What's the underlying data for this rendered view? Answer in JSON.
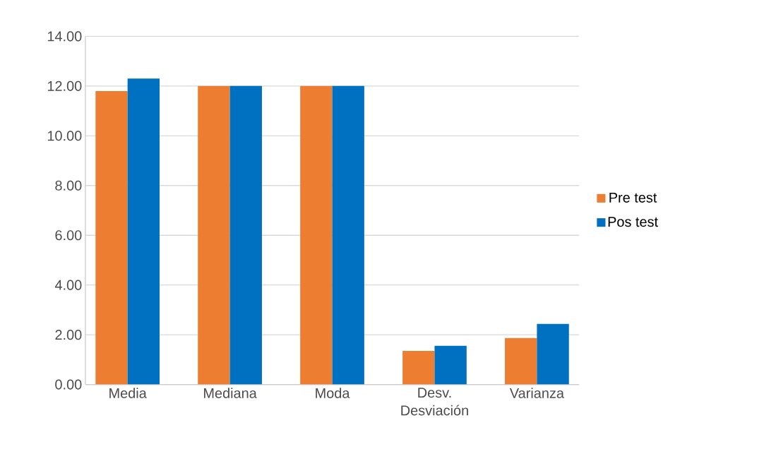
{
  "chart_data": {
    "type": "bar",
    "categories": [
      "Media",
      "Mediana",
      "Moda",
      "Desv. Desviación",
      "Varianza"
    ],
    "series": [
      {
        "name": "Pre test",
        "color": "#ed7d31",
        "values": [
          11.8,
          12,
          12,
          1.35,
          1.87
        ]
      },
      {
        "name": "Pos test",
        "color": "#0070c0",
        "values": [
          12.3,
          12,
          12,
          1.56,
          2.44
        ]
      }
    ],
    "ylim": [
      0,
      14
    ],
    "yticks": [
      {
        "value": 0,
        "label": "0.00"
      },
      {
        "value": 2,
        "label": "2.00"
      },
      {
        "value": 4,
        "label": "4.00"
      },
      {
        "value": 6,
        "label": "6.00"
      },
      {
        "value": 8,
        "label": "8.00"
      },
      {
        "value": 10,
        "label": "10.00"
      },
      {
        "value": 12,
        "label": "12.00"
      },
      {
        "value": 14,
        "label": "14.00"
      }
    ],
    "grid": "y",
    "legend": "right"
  }
}
